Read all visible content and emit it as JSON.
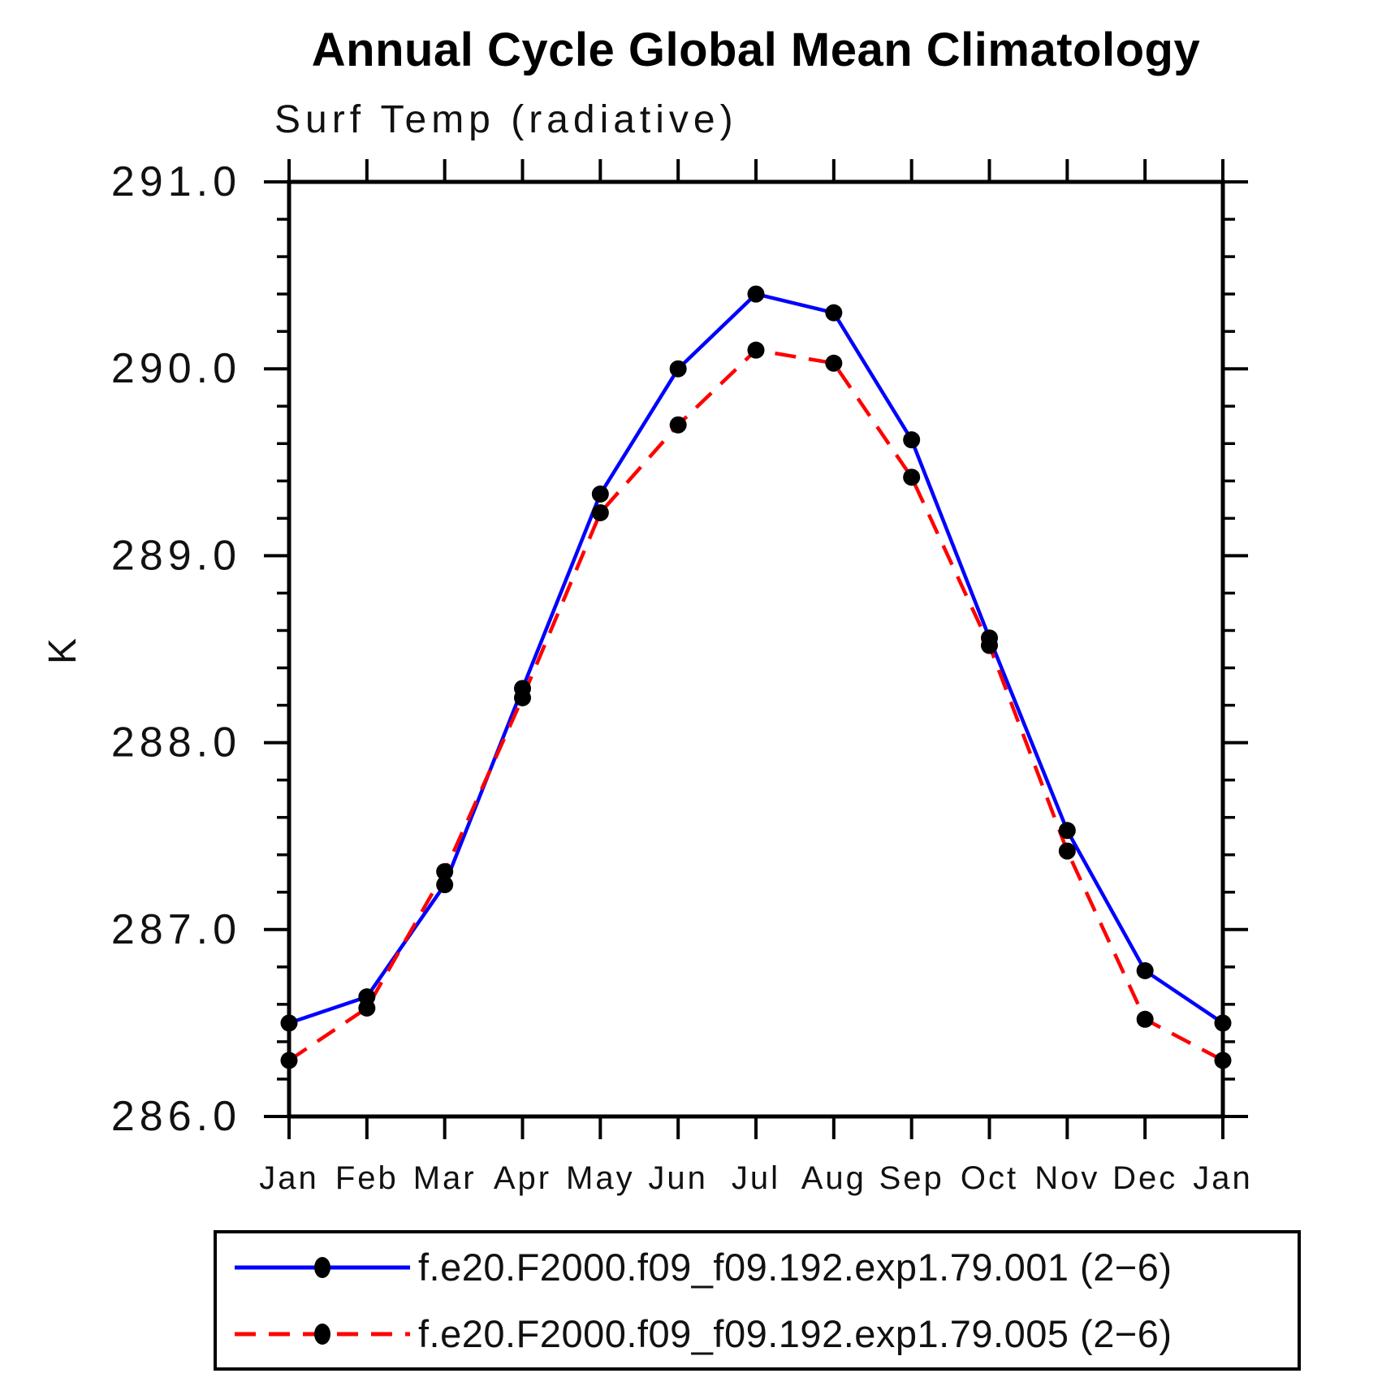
{
  "title": "Annual Cycle Global Mean Climatology",
  "subtitle": "Surf Temp (radiative)",
  "ylabel": "K",
  "legend": {
    "position": "bottom",
    "items": [
      {
        "label": "f.e20.F2000.f09_f09.192.exp1.79.001 (2−6)",
        "color": "#0000ff",
        "style": "solid"
      },
      {
        "label": "f.e20.F2000.f09_f09.192.exp1.79.005 (2−6)",
        "color": "#ff0000",
        "style": "dashed"
      }
    ]
  },
  "chart_data": {
    "type": "line",
    "title": "Annual Cycle Global Mean Climatology",
    "subtitle": "Surf Temp (radiative)",
    "xlabel": "",
    "ylabel": "K",
    "categories": [
      "Jan",
      "Feb",
      "Mar",
      "Apr",
      "May",
      "Jun",
      "Jul",
      "Aug",
      "Sep",
      "Oct",
      "Nov",
      "Dec",
      "Jan"
    ],
    "ylim": [
      286.0,
      291.0
    ],
    "ytick_values": [
      291.0,
      290.0,
      289.0,
      288.0,
      287.0,
      286.0
    ],
    "ytick_labels": [
      "291.0",
      "290.0",
      "289.0",
      "288.0",
      "287.0",
      "286.0"
    ],
    "y_minor_step": 0.2,
    "grid": false,
    "marker": {
      "shape": "circle",
      "color": "#000000",
      "radius": 10.5
    },
    "series": [
      {
        "name": "f.e20.F2000.f09_f09.192.exp1.79.001 (2−6)",
        "color": "#0000ff",
        "style": "solid",
        "values": [
          286.5,
          286.64,
          287.24,
          288.29,
          289.33,
          290.0,
          290.4,
          290.3,
          289.62,
          288.56,
          287.53,
          286.78,
          286.5
        ]
      },
      {
        "name": "f.e20.F2000.f09_f09.192.exp1.79.005 (2−6)",
        "color": "#ff0000",
        "style": "dashed",
        "values": [
          286.3,
          286.58,
          287.31,
          288.24,
          289.23,
          289.7,
          290.1,
          290.03,
          289.42,
          288.52,
          287.42,
          286.52,
          286.3
        ]
      }
    ]
  }
}
